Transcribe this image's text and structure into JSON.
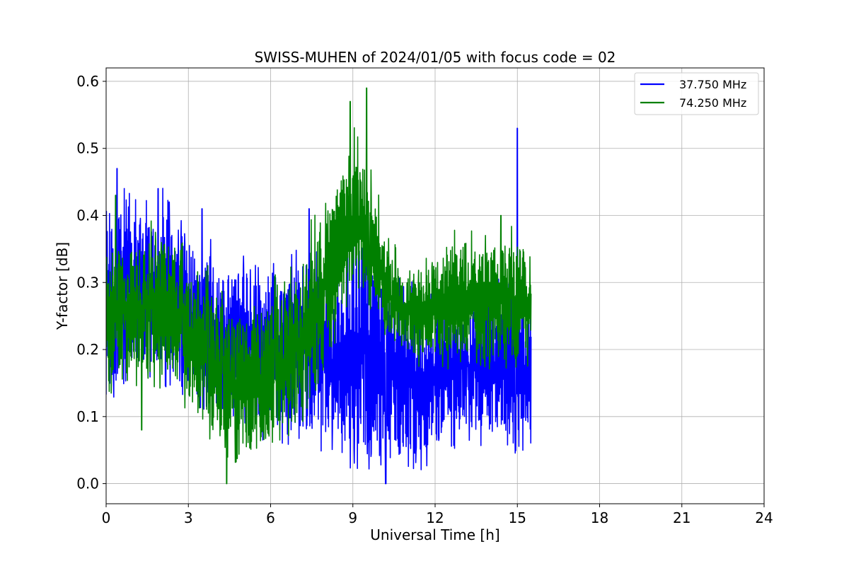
{
  "chart_data": {
    "type": "line",
    "title": "SWISS-MUHEN of 2024/01/05 with focus code = 02",
    "xlabel": "Universal Time [h]",
    "ylabel": "Y-factor [dB]",
    "xlim": [
      0,
      24
    ],
    "ylim": [
      -0.03,
      0.62
    ],
    "xticks": [
      0,
      3,
      6,
      9,
      12,
      15,
      18,
      21,
      24
    ],
    "yticks": [
      0.0,
      0.1,
      0.2,
      0.3,
      0.4,
      0.5,
      0.6
    ],
    "xtick_labels": [
      "0",
      "3",
      "6",
      "9",
      "12",
      "15",
      "18",
      "21",
      "24"
    ],
    "ytick_labels": [
      "0.0",
      "0.1",
      "0.2",
      "0.3",
      "0.4",
      "0.5",
      "0.6"
    ],
    "grid": true,
    "legend_position": "top-right",
    "legend": [
      "37.750 MHz",
      "74.250 MHz"
    ],
    "series": [
      {
        "name": "37.750 MHz",
        "color": "#0000ff",
        "x": [
          0,
          0.5,
          1,
          1.5,
          2,
          2.5,
          3,
          3.5,
          4,
          4.5,
          5,
          5.5,
          6,
          6.5,
          7,
          7.5,
          8,
          8.5,
          9,
          9.5,
          10,
          10.5,
          11,
          11.5,
          12,
          12.5,
          13,
          13.5,
          14,
          14.5,
          15,
          15.5
        ],
        "low": [
          0.14,
          0.17,
          0.18,
          0.18,
          0.17,
          0.16,
          0.15,
          0.14,
          0.12,
          0.11,
          0.11,
          0.09,
          0.08,
          0.08,
          0.08,
          0.08,
          0.07,
          0.06,
          0.05,
          0.05,
          0.05,
          0.05,
          0.05,
          0.05,
          0.06,
          0.08,
          0.08,
          0.08,
          0.08,
          0.08,
          0.07,
          0.06
        ],
        "high": [
          0.4,
          0.41,
          0.39,
          0.39,
          0.41,
          0.37,
          0.36,
          0.35,
          0.33,
          0.31,
          0.31,
          0.3,
          0.29,
          0.3,
          0.33,
          0.33,
          0.3,
          0.3,
          0.36,
          0.36,
          0.29,
          0.28,
          0.27,
          0.26,
          0.26,
          0.27,
          0.27,
          0.27,
          0.28,
          0.27,
          0.27,
          0.24
        ],
        "spikes": [
          [
            0.4,
            0.47
          ],
          [
            1.9,
            0.44
          ],
          [
            2.3,
            0.42
          ],
          [
            3.5,
            0.41
          ],
          [
            7.4,
            0.41
          ],
          [
            10.2,
            0.0
          ],
          [
            15.0,
            0.53
          ]
        ]
      },
      {
        "name": "74.250 MHz",
        "color": "#008000",
        "x": [
          0,
          0.5,
          1,
          1.5,
          2,
          2.5,
          3,
          3.5,
          4,
          4.5,
          5,
          5.5,
          6,
          6.5,
          7,
          7.5,
          8,
          8.5,
          9,
          9.5,
          10,
          10.5,
          11,
          11.5,
          12,
          12.5,
          13,
          13.5,
          14,
          14.5,
          15,
          15.5
        ],
        "low": [
          0.16,
          0.17,
          0.17,
          0.17,
          0.17,
          0.16,
          0.13,
          0.1,
          0.08,
          0.06,
          0.05,
          0.05,
          0.06,
          0.08,
          0.1,
          0.15,
          0.2,
          0.24,
          0.28,
          0.3,
          0.25,
          0.21,
          0.2,
          0.18,
          0.18,
          0.19,
          0.2,
          0.2,
          0.2,
          0.2,
          0.19,
          0.19
        ],
        "high": [
          0.36,
          0.35,
          0.35,
          0.36,
          0.36,
          0.35,
          0.31,
          0.3,
          0.27,
          0.25,
          0.24,
          0.26,
          0.28,
          0.28,
          0.31,
          0.36,
          0.39,
          0.44,
          0.5,
          0.47,
          0.38,
          0.33,
          0.31,
          0.32,
          0.33,
          0.36,
          0.36,
          0.35,
          0.35,
          0.36,
          0.36,
          0.34
        ],
        "spikes": [
          [
            0.35,
            0.43
          ],
          [
            1.3,
            0.08
          ],
          [
            4.4,
            0.0
          ],
          [
            8.9,
            0.57
          ],
          [
            9.5,
            0.59
          ],
          [
            14.4,
            0.4
          ]
        ]
      }
    ]
  }
}
